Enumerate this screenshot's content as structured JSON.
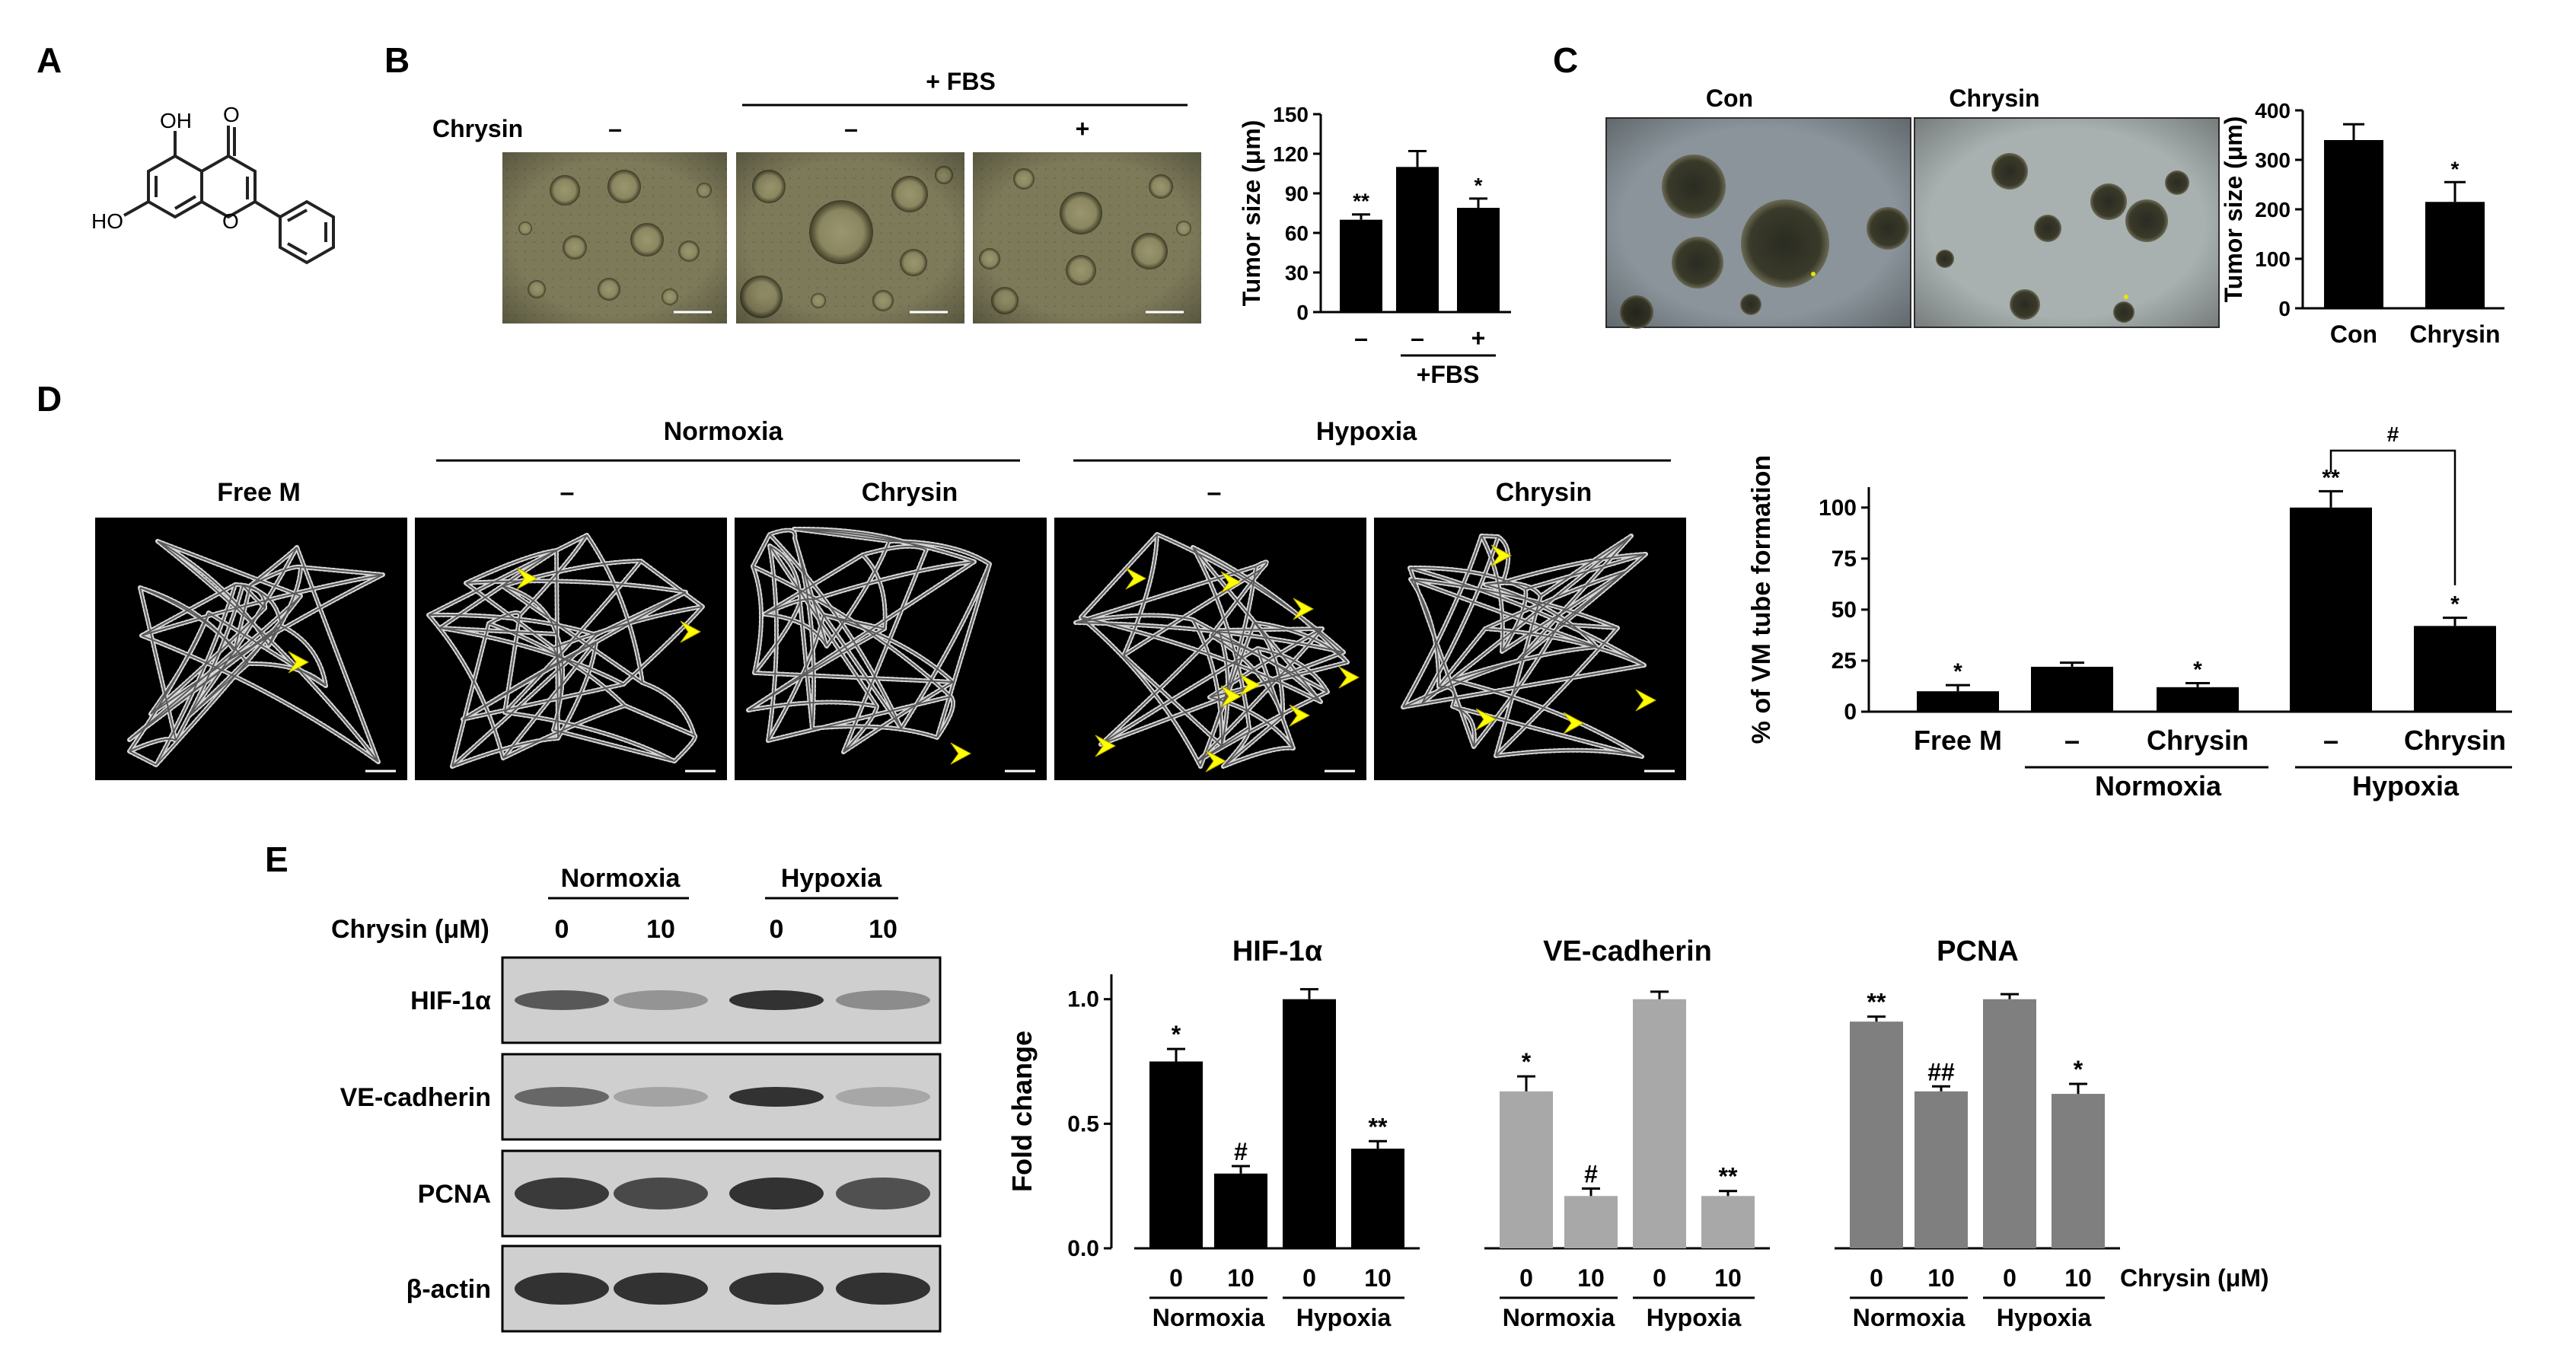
{
  "panels": {
    "A": {
      "letter": "A",
      "structure_labels": {
        "oh_top": "OH",
        "o_keto": "O",
        "oh_left": "HO",
        "o_ring": "O"
      }
    },
    "B": {
      "letter": "B",
      "header": "+ FBS",
      "row_label": "Chrysin",
      "conditions": [
        "–",
        "–",
        "+"
      ],
      "chart_data": {
        "type": "bar",
        "categories": [
          "–",
          "–",
          "+"
        ],
        "values": [
          70,
          110,
          79
        ],
        "errors": [
          4,
          12,
          7
        ],
        "significance": [
          "**",
          "",
          "*"
        ],
        "ylabel": "Tumor size (μm)",
        "ylim": [
          0,
          150
        ],
        "yticks": [
          0,
          30,
          60,
          90,
          120,
          150
        ],
        "group_label": "+FBS",
        "colors": [
          "#000000"
        ]
      }
    },
    "C": {
      "letter": "C",
      "image_labels": [
        "Con",
        "Chrysin"
      ],
      "chart_data": {
        "type": "bar",
        "categories": [
          "Con",
          "Chrysin"
        ],
        "values": [
          340,
          215
        ],
        "errors": [
          32,
          40
        ],
        "significance": [
          "",
          "*"
        ],
        "ylabel": "Tumor size (μm)",
        "ylim": [
          0,
          400
        ],
        "yticks": [
          0,
          100,
          200,
          300,
          400
        ]
      }
    },
    "D": {
      "letter": "D",
      "group_labels": [
        "Normoxia",
        "Hypoxia"
      ],
      "image_labels": [
        "Free M",
        "–",
        "Chrysin",
        "–",
        "Chrysin"
      ],
      "chart_data": {
        "type": "bar",
        "categories": [
          "Free M",
          "–",
          "Chrysin",
          "–",
          "Chrysin"
        ],
        "values": [
          10,
          22,
          12,
          100,
          42
        ],
        "errors": [
          3,
          2,
          2,
          8,
          4
        ],
        "significance": [
          "*",
          "",
          "*",
          "**",
          "*"
        ],
        "bracket_label": "#",
        "ylabel": "% of VM tube formation",
        "ylim": [
          0,
          110
        ],
        "yticks": [
          0,
          25,
          50,
          75,
          100
        ],
        "group_labels": [
          "Normoxia",
          "Hypoxia"
        ]
      }
    },
    "E": {
      "letter": "E",
      "blot": {
        "groups": [
          "Normoxia",
          "Hypoxia"
        ],
        "dose_label": "Chrysin (μM)",
        "doses": [
          "0",
          "10",
          "0",
          "10"
        ],
        "rows": [
          "HIF-1α",
          "VE-cadherin",
          "PCNA",
          "β-actin"
        ]
      },
      "chart_data": {
        "type": "bar",
        "ylabel": "Fold change",
        "ylim": [
          0,
          1.1
        ],
        "yticks": [
          "0.0",
          "0.5",
          "1.0"
        ],
        "x_axis_title": "Chrysin (μM)",
        "doses": [
          "0",
          "10",
          "0",
          "10"
        ],
        "group_labels": [
          "Normoxia",
          "Hypoxia"
        ],
        "series": [
          {
            "name": "HIF-1α",
            "values": [
              0.75,
              0.3,
              1.0,
              0.4
            ],
            "errors": [
              0.05,
              0.03,
              0.04,
              0.03
            ],
            "significance": [
              "*",
              "#",
              "",
              "**"
            ],
            "color": "#000000"
          },
          {
            "name": "VE-cadherin",
            "values": [
              0.63,
              0.21,
              1.0,
              0.21
            ],
            "errors": [
              0.06,
              0.03,
              0.03,
              0.02
            ],
            "significance": [
              "*",
              "#",
              "",
              "**"
            ],
            "color": "#a8a8a8"
          },
          {
            "name": "PCNA",
            "values": [
              0.91,
              0.63,
              1.0,
              0.62
            ],
            "errors": [
              0.02,
              0.02,
              0.02,
              0.04
            ],
            "significance": [
              "**",
              "##",
              "",
              "*"
            ],
            "color": "#7f7f7f"
          }
        ]
      }
    }
  }
}
